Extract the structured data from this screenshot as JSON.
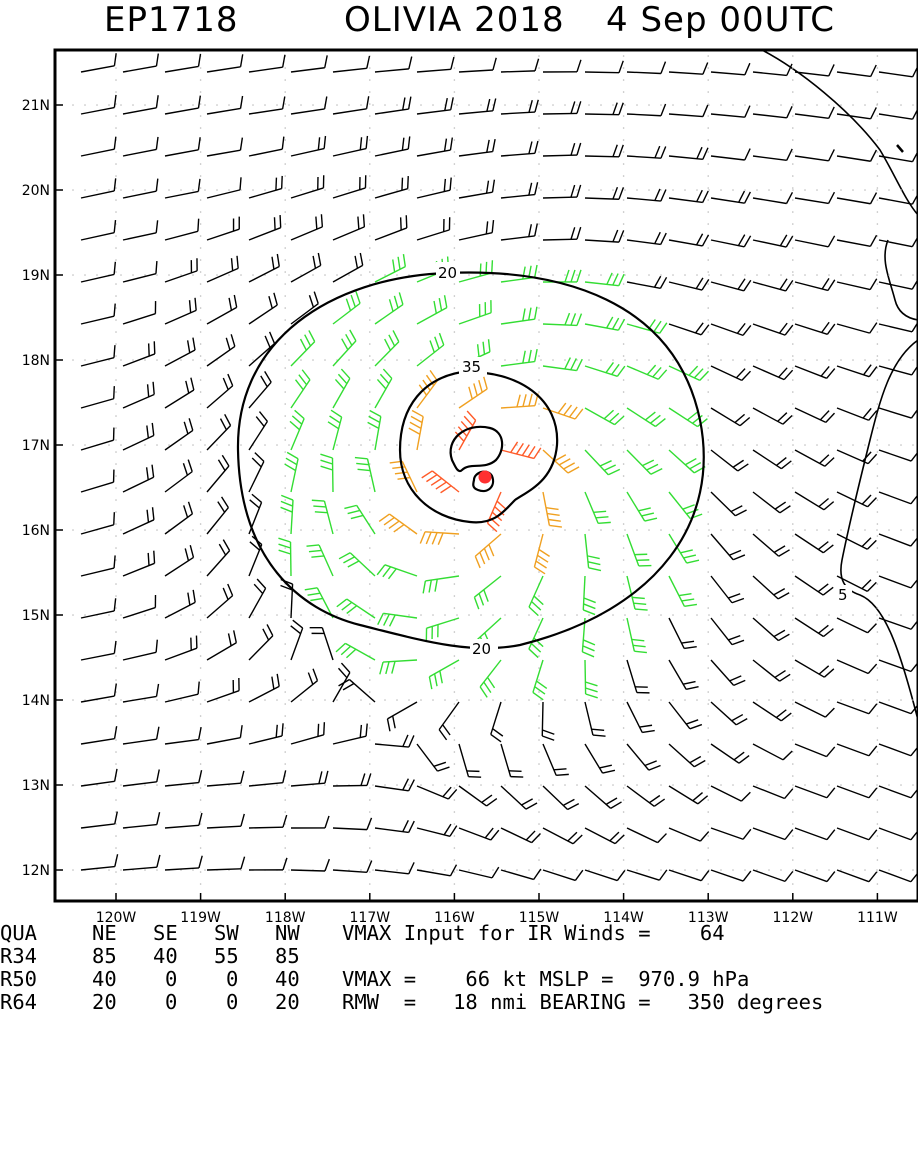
{
  "header": {
    "storm_id": "EP1718",
    "storm_name": "OLIVIA 2018",
    "datetime": "4 Sep 00UTC"
  },
  "map": {
    "lat_ticks": [
      "21N",
      "20N",
      "19N",
      "18N",
      "17N",
      "16N",
      "15N",
      "14N",
      "13N",
      "12N"
    ],
    "lon_ticks": [
      "120W",
      "119W",
      "118W",
      "117W",
      "116W",
      "115W",
      "114W",
      "113W",
      "112W",
      "111W"
    ],
    "contour_labels": [
      "20",
      "35",
      "20",
      "5"
    ],
    "center": {
      "lat": 16.65,
      "lon": -115.65
    },
    "colors": {
      "weak_barbs": "#000000",
      "r34_barbs": "#33dd33",
      "r50_barbs": "#f0a020",
      "r64_barbs": "#ff5a28",
      "center": "#ff3030"
    }
  },
  "radii_table": {
    "headers": [
      "QUA",
      "NE",
      "SE",
      "SW",
      "NW"
    ],
    "rows": [
      [
        "R34",
        "85",
        "40",
        "55",
        "85"
      ],
      [
        "R50",
        "40",
        "0",
        "0",
        "40"
      ],
      [
        "R64",
        "20",
        "0",
        "0",
        "20"
      ]
    ]
  },
  "stats": {
    "line1": "VMAX Input for IR Winds =    64",
    "line2": "VMAX =    66 kt MSLP =  970.9 hPa",
    "line3": "RMW  =   18 nmi BEARING =   350 degrees"
  }
}
